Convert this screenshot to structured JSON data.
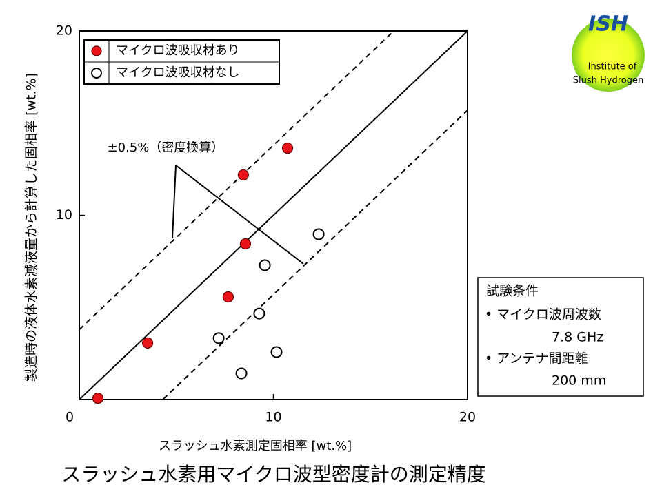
{
  "chart_data": {
    "type": "scatter",
    "title": "スラッシュ水素用マイクロ波型密度計の測定精度",
    "x_label": "スラッシュ水素測定固相率 [wt.%]",
    "y_label": "製造時の液体水素減液量から計算した固相率 [wt.%]",
    "xlim": [
      0,
      20
    ],
    "ylim": [
      0,
      20
    ],
    "xticks": [
      0,
      10,
      20
    ],
    "yticks": [
      10,
      20
    ],
    "series": [
      {
        "name": "マイクロ波吸収材あり",
        "color": "#e8141a",
        "filled": true,
        "x": [
          0.96,
          3.52,
          7.67,
          8.56,
          8.45,
          10.73
        ],
        "values": [
          0.07,
          3.07,
          5.57,
          8.45,
          12.19,
          13.64
        ]
      },
      {
        "name": "マイクロ波吸収材なし",
        "color": "#000000",
        "filled": false,
        "x": [
          12.33,
          9.56,
          9.27,
          7.18,
          10.16,
          8.35
        ],
        "values": [
          8.97,
          7.29,
          4.67,
          3.33,
          2.58,
          1.42
        ]
      }
    ],
    "reference_offsets": [
      {
        "offset": 0,
        "dashed": false
      },
      {
        "offset": 3.8,
        "dashed": true
      },
      {
        "offset": -4.3,
        "dashed": true
      }
    ],
    "annotation": "±0.5%（密度換算）",
    "conditions": {
      "title": "試験条件",
      "items": [
        "• マイクロ波周波数",
        "7.8 GHz",
        "• アンテナ間距離",
        "200 mm"
      ]
    },
    "logo": {
      "name": "ISH",
      "lines": [
        "Institute of",
        "Slush Hydrogen"
      ]
    }
  }
}
